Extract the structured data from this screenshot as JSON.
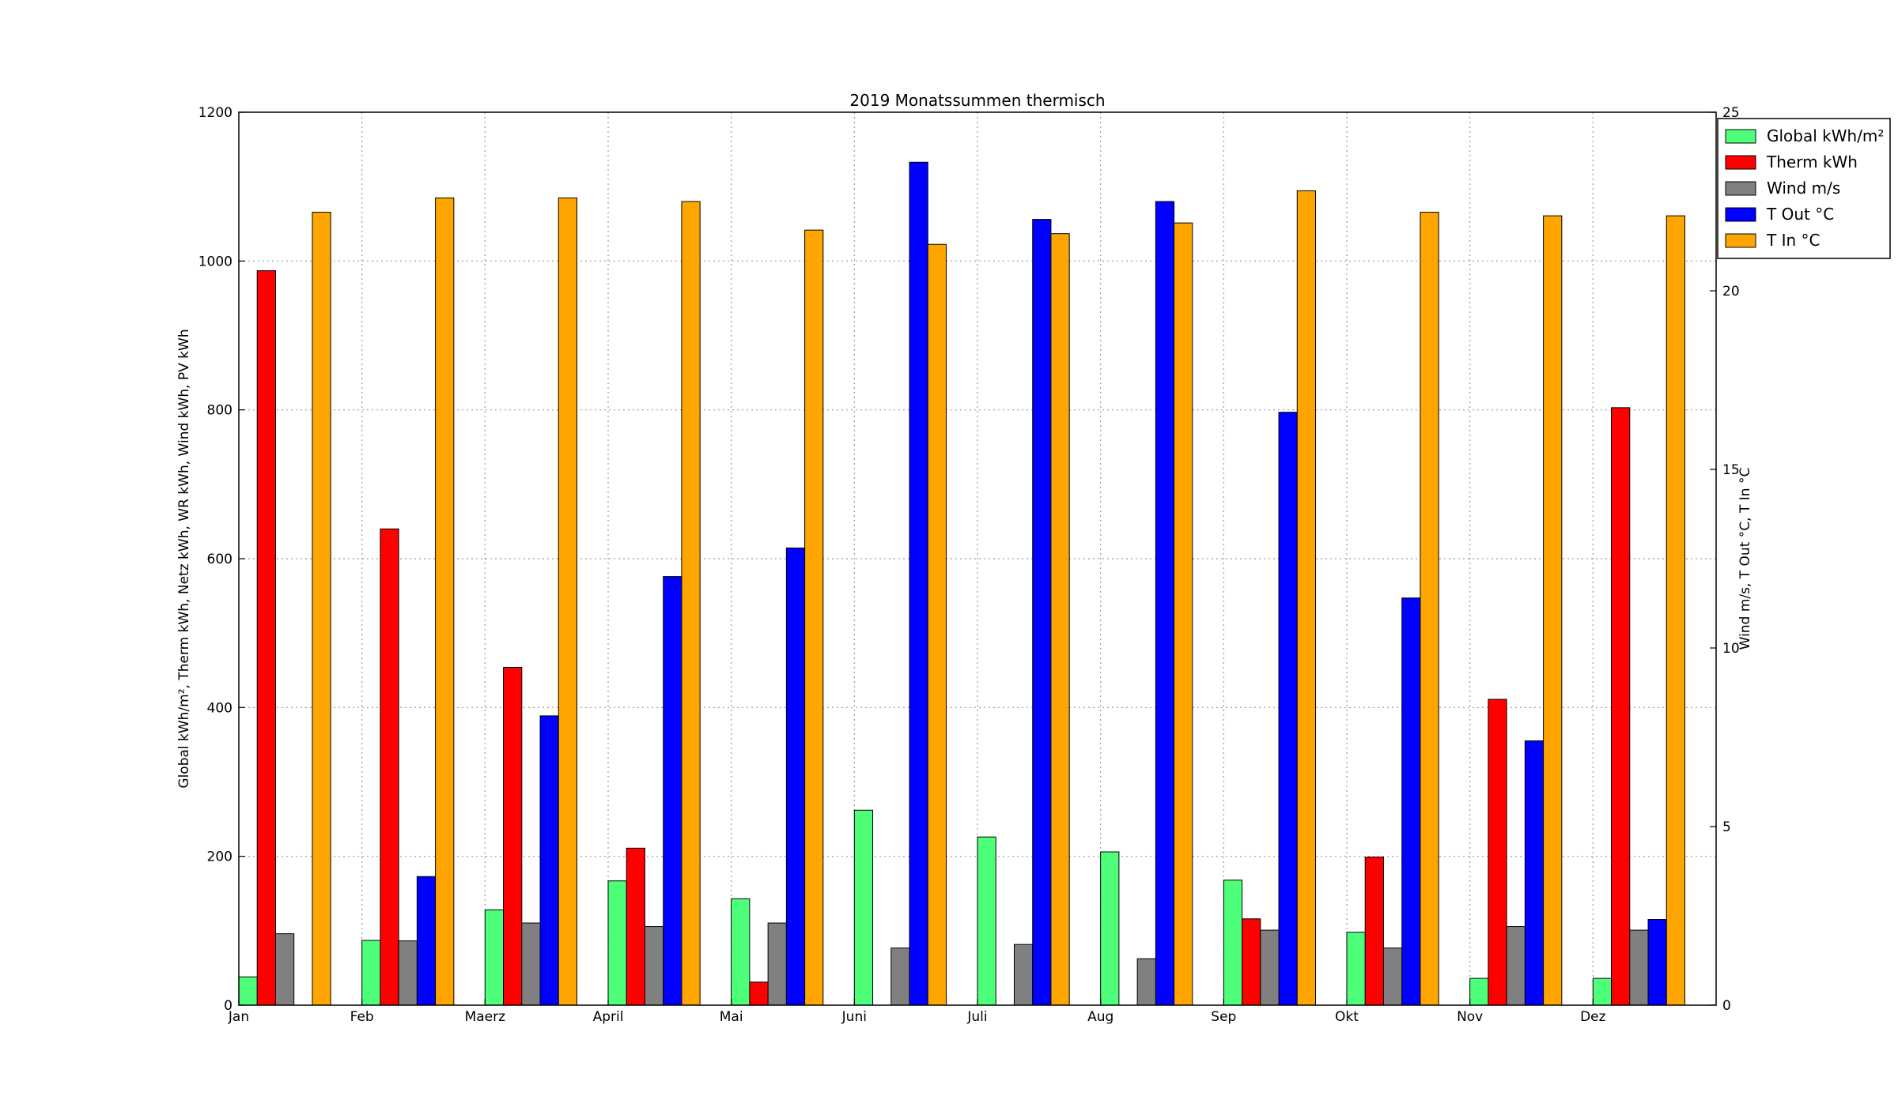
{
  "chart_data": {
    "type": "bar",
    "title": "2019 Monatssummen thermisch",
    "ylabel_left": "Global kWh/m², Therm kWh, Netz kWh, WR kWh, Wind kWh, PV kWh",
    "ylabel_right": "Wind m/s, T Out °C, T In °C",
    "categories": [
      "Jan",
      "Feb",
      "Maerz",
      "April",
      "Mai",
      "Juni",
      "Juli",
      "Aug",
      "Sep",
      "Okt",
      "Nov",
      "Dez"
    ],
    "ylim_left": [
      0,
      1200
    ],
    "ylim_right": [
      0,
      25
    ],
    "yticks_left": [
      "0",
      "200",
      "400",
      "600",
      "800",
      "1000",
      "1200"
    ],
    "yticks_right": [
      "0",
      "5",
      "10",
      "15",
      "20",
      "25"
    ],
    "grid": true,
    "legend_position": "top-right",
    "series": [
      {
        "name": "Global kWh/m²",
        "axis": "left",
        "color": "#4eff7a",
        "values": [
          38,
          87,
          128,
          167,
          143,
          262,
          226,
          206,
          168,
          98,
          36,
          36
        ]
      },
      {
        "name": "Therm kWh",
        "axis": "left",
        "color": "#ff0000",
        "values": [
          987,
          640,
          454,
          211,
          31,
          0,
          0,
          0,
          116,
          199,
          411,
          803
        ]
      },
      {
        "name": "Wind m/s",
        "axis": "right",
        "color": "#808080",
        "values": [
          2.0,
          1.8,
          2.3,
          2.2,
          2.3,
          1.6,
          1.7,
          1.3,
          2.1,
          1.6,
          2.2,
          2.1
        ]
      },
      {
        "name": "T Out °C",
        "axis": "right",
        "color": "#0000ff",
        "values": [
          0,
          3.6,
          8.1,
          12.0,
          12.8,
          23.6,
          22.0,
          22.5,
          16.6,
          11.4,
          7.4,
          2.4
        ]
      },
      {
        "name": "T In °C",
        "axis": "right",
        "color": "#ffa500",
        "values": [
          22.2,
          22.6,
          22.6,
          22.5,
          21.7,
          21.3,
          21.6,
          21.9,
          22.8,
          22.2,
          22.1,
          22.1
        ]
      }
    ]
  }
}
